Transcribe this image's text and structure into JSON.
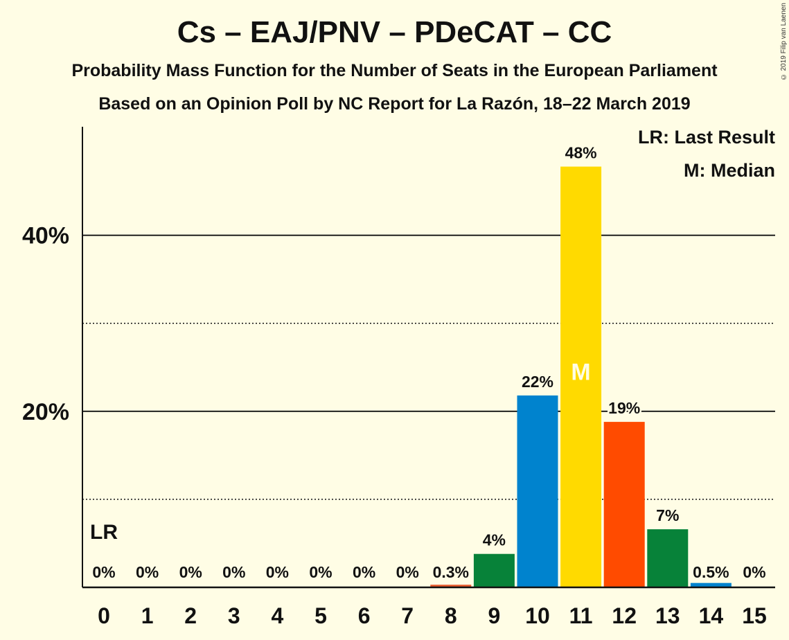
{
  "chart_data": {
    "type": "bar",
    "title": "Cs – EAJ/PNV – PDeCAT – CC",
    "subtitle": "Probability Mass Function for the Number of Seats in the European Parliament",
    "subtitle2": "Based on an Opinion Poll by NC Report for La Razón, 18–22 March 2019",
    "copyright": "© 2019 Filip van Laenen",
    "categories": [
      "0",
      "1",
      "2",
      "3",
      "4",
      "5",
      "6",
      "7",
      "8",
      "9",
      "10",
      "11",
      "12",
      "13",
      "14",
      "15"
    ],
    "values": [
      0,
      0,
      0,
      0,
      0,
      0,
      0,
      0,
      0.3,
      3.8,
      21.8,
      47.8,
      18.8,
      6.6,
      0.5,
      0
    ],
    "value_labels": [
      "0%",
      "0%",
      "0%",
      "0%",
      "0%",
      "0%",
      "0%",
      "0%",
      "0.3%",
      "4%",
      "22%",
      "48%",
      "19%",
      "7%",
      "0.5%",
      "0%"
    ],
    "colors": [
      "#E85B2E",
      "#E85B2E",
      "#E85B2E",
      "#E85B2E",
      "#E85B2E",
      "#E85B2E",
      "#E85B2E",
      "#E85B2E",
      "#E85B2E",
      "#078239",
      "#0083CE",
      "#FFDA00",
      "#FF4B00",
      "#078239",
      "#0083CE",
      "#0083CE"
    ],
    "ylim": [
      0,
      52
    ],
    "yticks": [
      {
        "value": 20,
        "label": "20%"
      },
      {
        "value": 40,
        "label": "40%"
      }
    ],
    "minor_gridlines": [
      10,
      30
    ],
    "last_result_seat": 0,
    "last_result_marker": "LR",
    "median_seat": 11,
    "median_marker": "M",
    "legend": {
      "last_result": "LR: Last Result",
      "median": "M: Median",
      "placement": "top-right"
    }
  }
}
